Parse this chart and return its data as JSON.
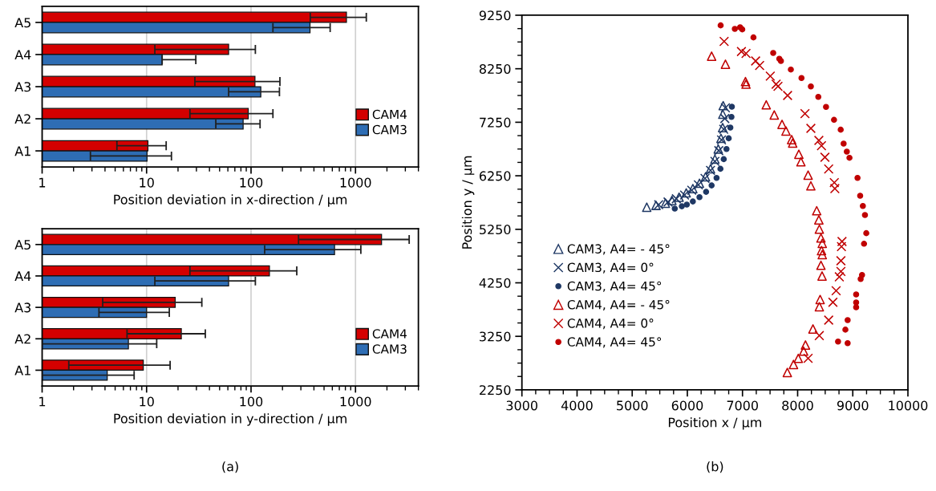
{
  "chart_data": [
    {
      "type": "bar",
      "orientation": "horizontal",
      "xlabel": "Position deviation in x-direction / µm",
      "categories": [
        "A5",
        "A4",
        "A3",
        "A2",
        "A1"
      ],
      "log": "x",
      "xlim": [
        1,
        4000
      ],
      "xticks": [
        1,
        10,
        100,
        1000
      ],
      "grid": "x",
      "legend": "bottom right",
      "series": [
        {
          "name": "CAM4",
          "color": "#d40000",
          "values": [
            819,
            61,
            109,
            94,
            10.3
          ],
          "errors": [
            450,
            49,
            80,
            68,
            5.1
          ]
        },
        {
          "name": "CAM3",
          "color": "#2e6db4",
          "values": [
            367,
            14.1,
            124,
            84,
            10.1
          ],
          "errors": [
            205,
            [
              14.1,
              29.6
            ],
            63,
            38,
            7.2
          ]
        }
      ]
    },
    {
      "type": "bar",
      "orientation": "horizontal",
      "xlabel": "Position deviation in y-direction / µm",
      "categories": [
        "A5",
        "A4",
        "A3",
        "A2",
        "A1"
      ],
      "log": "x",
      "xlim": [
        1,
        4000
      ],
      "xticks": [
        1,
        10,
        100,
        1000
      ],
      "grid": "x",
      "legend": "bottom right",
      "annotations": [
        "(a)"
      ],
      "series": [
        {
          "name": "CAM4",
          "color": "#d40000",
          "values": [
            1775,
            150,
            18.8,
            21.5,
            9.3
          ],
          "errors": [
            1490,
            124,
            15,
            15,
            7.5
          ]
        },
        {
          "name": "CAM3",
          "color": "#2e6db4",
          "values": [
            630,
            61,
            10,
            6.7,
            4.2
          ],
          "errors": [
            495,
            49,
            6.5,
            [
              1,
              12.5
            ],
            [
              1,
              7.6
            ]
          ]
        }
      ]
    },
    {
      "type": "scatter",
      "xlabel": "Position x / µm",
      "ylabel": "Position y / µm",
      "xlim": [
        3000,
        10000
      ],
      "xticks": [
        3000,
        4000,
        5000,
        6000,
        7000,
        8000,
        9000,
        10000
      ],
      "ylim": [
        2250,
        9250
      ],
      "yticks": [
        2250,
        3250,
        4250,
        5250,
        6250,
        7250,
        8250,
        9250
      ],
      "grid": false,
      "legend": "lower left",
      "annotations": [
        "(b)"
      ],
      "series": [
        {
          "name": "CAM3, A4= - 45°",
          "color": "#1f3864",
          "marker": "triangle",
          "x": [
            5264,
            5432,
            5602,
            5720,
            5850,
            5980,
            6100,
            6220,
            6330,
            6420,
            6500,
            6560,
            6610,
            6640,
            6643,
            6650
          ],
          "values": [
            5662,
            5697,
            5737,
            5790,
            5850,
            5930,
            6010,
            6110,
            6230,
            6380,
            6560,
            6750,
            6950,
            7150,
            7400,
            7560
          ]
        },
        {
          "name": "CAM3, A4= 0°",
          "color": "#1f3864",
          "marker": "cross",
          "x": [
            5480,
            5650,
            5800,
            5950,
            6080,
            6200,
            6320,
            6420,
            6500,
            6570,
            6620,
            6660,
            6680,
            6690
          ],
          "values": [
            5710,
            5760,
            5820,
            5890,
            5980,
            6080,
            6200,
            6350,
            6520,
            6720,
            6920,
            7120,
            7320,
            7520
          ]
        },
        {
          "name": "CAM3, A4= 45°",
          "color": "#1f3864",
          "marker": "circle",
          "x": [
            5772,
            5900,
            5990,
            6100,
            6220,
            6340,
            6440,
            6530,
            6600,
            6660,
            6710,
            6750,
            6780,
            6800,
            6807
          ],
          "values": [
            5637,
            5680,
            5712,
            5770,
            5850,
            5950,
            6070,
            6210,
            6380,
            6560,
            6750,
            6950,
            7150,
            7350,
            7540
          ]
        },
        {
          "name": "CAM4, A4= - 45°",
          "color": "#c00000",
          "marker": "triangle",
          "x": [
            6440,
            6691,
            7054,
            7064,
            7431,
            7576,
            7717,
            7789,
            7891,
            7910,
            8022,
            8060,
            8190,
            8240,
            8346,
            8385,
            8394,
            8423,
            8447,
            8433,
            8447,
            8423,
            8443,
            8408,
            8394,
            8278,
            8142,
            8109,
            8012,
            7925,
            7813
          ],
          "values": [
            8485,
            8335,
            8010,
            7961,
            7575,
            7386,
            7211,
            7086,
            6926,
            6862,
            6652,
            6511,
            6262,
            6062,
            5597,
            5427,
            5252,
            5087,
            4987,
            4852,
            4777,
            4577,
            4377,
            3938,
            3803,
            3388,
            3088,
            2973,
            2838,
            2724,
            2574
          ]
        },
        {
          "name": "CAM4, A4= 0°",
          "color": "#c00000",
          "marker": "cross",
          "x": [
            6667,
            6981,
            7064,
            7238,
            7311,
            7504,
            7610,
            7644,
            7818,
            8133,
            8240,
            8385,
            8433,
            8495,
            8563,
            8665,
            8675,
            8805,
            8795,
            8785,
            8785,
            8756,
            8698,
            8640,
            8563,
            8393,
            8190
          ],
          "values": [
            8760,
            8571,
            8535,
            8395,
            8310,
            8111,
            7961,
            7920,
            7751,
            7411,
            7136,
            6911,
            6811,
            6596,
            6376,
            6121,
            6011,
            5022,
            4927,
            4662,
            4462,
            4362,
            4103,
            3887,
            3553,
            3264,
            2838
          ]
        },
        {
          "name": "CAM4, A4= 45°",
          "color": "#c00000",
          "marker": "circle",
          "x": [
            6604,
            6861,
            6957,
            6996,
            7199,
            7557,
            7668,
            7697,
            7877,
            8070,
            8240,
            8375,
            8515,
            8660,
            8781,
            8834,
            8892,
            8940,
            9086,
            9134,
            9183,
            9221,
            9245,
            9204,
            9168,
            9143,
            9061,
            9061,
            9061,
            8907,
            8866,
            8733,
            8907
          ],
          "values": [
            9060,
            8995,
            9025,
            8985,
            8835,
            8545,
            8436,
            8395,
            8235,
            8076,
            7920,
            7725,
            7537,
            7296,
            7111,
            6851,
            6701,
            6586,
            6211,
            5877,
            5686,
            5517,
            5177,
            4980,
            4397,
            4322,
            4033,
            3883,
            3793,
            3553,
            3375,
            3153,
            3123
          ]
        }
      ]
    }
  ]
}
